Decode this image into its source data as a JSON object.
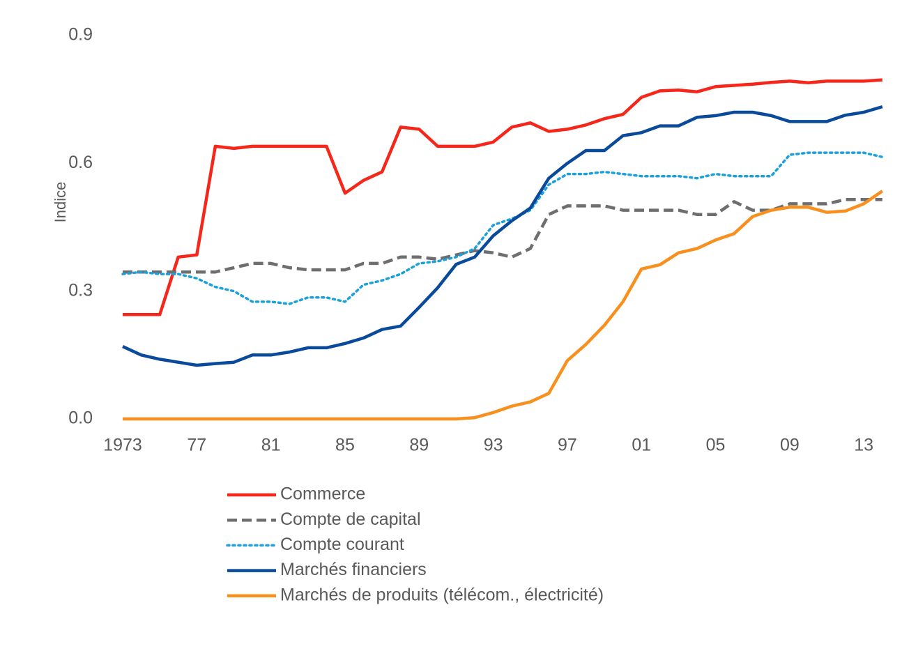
{
  "chart_data": {
    "type": "line",
    "y_label": "Indice",
    "categories": [
      "1973",
      null,
      null,
      null,
      "77",
      null,
      null,
      null,
      "81",
      null,
      null,
      null,
      "85",
      null,
      null,
      null,
      "89",
      null,
      null,
      null,
      "93",
      null,
      null,
      null,
      "97",
      null,
      null,
      null,
      "01",
      null,
      null,
      null,
      "05",
      null,
      null,
      null,
      "09",
      null,
      null,
      null,
      "13",
      null
    ],
    "ylim": [
      0,
      0.9
    ],
    "yticks": [
      {
        "value": 0,
        "label": "0.0"
      },
      0.3,
      0.6,
      0.9
    ],
    "grid": false,
    "legend": "bottom",
    "series": [
      {
        "name": "Commerce",
        "color": "#f5261a",
        "dash": "solid",
        "values": [
          0.245,
          0.245,
          0.245,
          0.38,
          0.385,
          0.64,
          0.635,
          0.64,
          0.64,
          0.64,
          0.64,
          0.64,
          0.53,
          0.56,
          0.58,
          0.685,
          0.68,
          0.64,
          0.64,
          0.64,
          0.65,
          0.685,
          0.695,
          0.675,
          0.68,
          0.69,
          0.705,
          0.715,
          0.755,
          0.77,
          0.772,
          0.768,
          0.78,
          0.783,
          0.786,
          0.79,
          0.793,
          0.789,
          0.793,
          0.793,
          0.793,
          0.796
        ]
      },
      {
        "name": "Compte de capital",
        "color": "#6e6e6e",
        "dash": "dashed",
        "values": [
          0.345,
          0.345,
          0.345,
          0.345,
          0.345,
          0.345,
          0.355,
          0.365,
          0.365,
          0.355,
          0.35,
          0.35,
          0.35,
          0.365,
          0.365,
          0.38,
          0.38,
          0.375,
          0.385,
          0.395,
          0.39,
          0.38,
          0.4,
          0.48,
          0.5,
          0.5,
          0.5,
          0.49,
          0.49,
          0.49,
          0.49,
          0.48,
          0.48,
          0.51,
          0.49,
          0.49,
          0.505,
          0.505,
          0.505,
          0.515,
          0.515,
          0.515
        ]
      },
      {
        "name": "Compte courant",
        "color": "#1aa0dc",
        "dash": "dotted",
        "values": [
          0.34,
          0.345,
          0.34,
          0.34,
          0.33,
          0.31,
          0.3,
          0.275,
          0.275,
          0.27,
          0.285,
          0.285,
          0.275,
          0.315,
          0.325,
          0.34,
          0.365,
          0.37,
          0.38,
          0.4,
          0.455,
          0.47,
          0.49,
          0.55,
          0.575,
          0.575,
          0.58,
          0.575,
          0.57,
          0.57,
          0.57,
          0.565,
          0.575,
          0.57,
          0.57,
          0.57,
          0.62,
          0.625,
          0.625,
          0.625,
          0.625,
          0.615
        ]
      },
      {
        "name": "Marchés financiers",
        "color": "#0a4a9a",
        "dash": "solid",
        "values": [
          0.17,
          0.15,
          0.14,
          0.133,
          0.126,
          0.13,
          0.133,
          0.15,
          0.15,
          0.157,
          0.167,
          0.167,
          0.177,
          0.19,
          0.21,
          0.218,
          0.262,
          0.308,
          0.363,
          0.38,
          0.43,
          0.465,
          0.495,
          0.565,
          0.6,
          0.63,
          0.63,
          0.665,
          0.672,
          0.688,
          0.688,
          0.708,
          0.712,
          0.72,
          0.72,
          0.712,
          0.698,
          0.698,
          0.698,
          0.713,
          0.72,
          0.733
        ]
      },
      {
        "name": "Marchés de produits (télécom., électricité)",
        "color": "#f7901e",
        "dash": "solid",
        "values": [
          0,
          0,
          0,
          0,
          0,
          0,
          0,
          0,
          0,
          0,
          0,
          0,
          0,
          0,
          0,
          0,
          0,
          0,
          0,
          0.003,
          0.015,
          0.03,
          0.04,
          0.06,
          0.137,
          0.175,
          0.22,
          0.275,
          0.352,
          0.362,
          0.39,
          0.4,
          0.42,
          0.435,
          0.475,
          0.49,
          0.497,
          0.497,
          0.485,
          0.488,
          0.505,
          0.535
        ]
      }
    ]
  }
}
